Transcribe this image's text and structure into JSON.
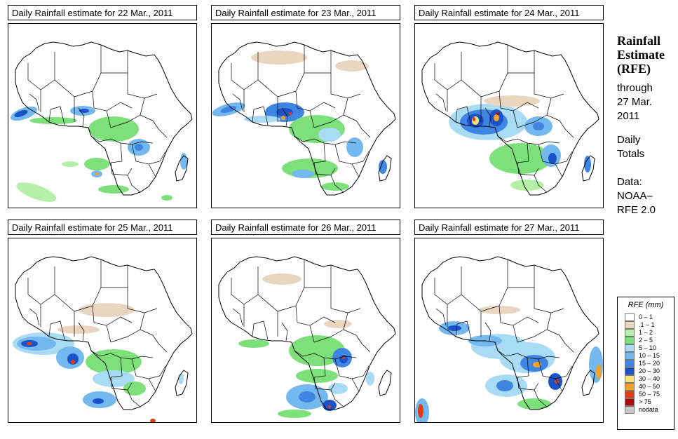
{
  "panels": [
    {
      "title": "Daily Rainfall estimate for  22 Mar., 2011",
      "scene": 0
    },
    {
      "title": "Daily Rainfall estimate for  23 Mar., 2011",
      "scene": 1
    },
    {
      "title": "Daily Rainfall estimate for  24 Mar., 2011",
      "scene": 2
    },
    {
      "title": "Daily Rainfall estimate for  25 Mar., 2011",
      "scene": 3
    },
    {
      "title": "Daily Rainfall estimate for  26 Mar., 2011",
      "scene": 4
    },
    {
      "title": "Daily Rainfall estimate for  27 Mar., 2011",
      "scene": 5
    }
  ],
  "side": {
    "title_lines": [
      "Rainfall",
      "Estimate",
      "(RFE)"
    ],
    "through_lines": [
      "through",
      "27 Mar.",
      "2011"
    ],
    "totals_lines": [
      "Daily",
      "Totals"
    ],
    "data_lines": [
      "Data:",
      "NOAA–",
      "RFE 2.0"
    ]
  },
  "legend": {
    "title": "RFE (mm)",
    "items": [
      {
        "label": "0 – 1",
        "color": "#ffffff"
      },
      {
        "label": ".1 – 1",
        "color": "#e8d6c0"
      },
      {
        "label": "1 – 2",
        "color": "#b6f0a8"
      },
      {
        "label": "2 – 5",
        "color": "#7ee07a"
      },
      {
        "label": "5 – 10",
        "color": "#a9dcf4"
      },
      {
        "label": "10 – 15",
        "color": "#73b8ee"
      },
      {
        "label": "15 – 20",
        "color": "#3f86e4"
      },
      {
        "label": "20 – 30",
        "color": "#1c52c8"
      },
      {
        "label": "30 – 40",
        "color": "#f8e07c"
      },
      {
        "label": "40 – 50",
        "color": "#f4a22a"
      },
      {
        "label": "50 – 75",
        "color": "#e23c14"
      },
      {
        "label": "> 75",
        "color": "#aa0c0c"
      },
      {
        "label": "nodata",
        "color": "#c8c8c8"
      }
    ]
  }
}
